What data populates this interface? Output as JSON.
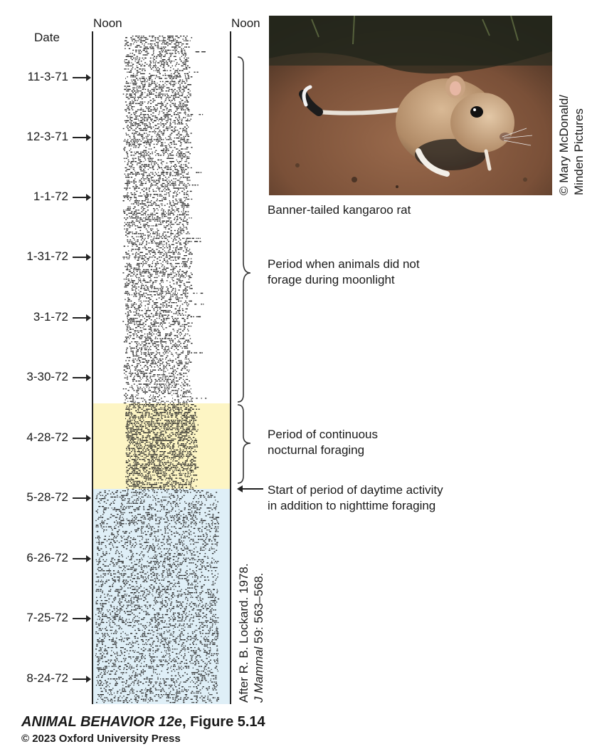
{
  "axis": {
    "left_header": "Noon",
    "right_header": "Noon",
    "date_header": "Date"
  },
  "dates": [
    "11-3-71",
    "12-3-71",
    "1-1-72",
    "1-31-72",
    "3-1-72",
    "3-30-72",
    "4-28-72",
    "5-28-72",
    "6-26-72",
    "7-25-72",
    "8-24-72"
  ],
  "periods": [
    {
      "label": "Period when animals did not forage during moonlight",
      "line1": "Period when animals did not",
      "line2": "forage during moonlight",
      "color": "#ffffff"
    },
    {
      "label": "Period of continuous nocturnal foraging",
      "line1": "Period of continuous",
      "line2": "nocturnal foraging",
      "color": "#fdf5c4"
    },
    {
      "label": "Start of period of daytime activity in addition to nighttime foraging",
      "line1": "Start of period of daytime activity",
      "line2": "in addition to nighttime foraging",
      "color": "#dfeff7"
    }
  ],
  "photo": {
    "caption": "Banner-tailed kangaroo rat",
    "credit_line1": "© Mary McDonald/",
    "credit_line2": "Minden Pictures"
  },
  "citation": {
    "line1": "After R. B. Lockard. 1978.",
    "line2_italic": "J Mammal",
    "line2_rest": " 59: 563–568."
  },
  "footer": {
    "title_italic": "ANIMAL BEHAVIOR 12e",
    "title_rest": ", Figure 5.14",
    "copyright": "© 2023 Oxford University Press"
  }
}
